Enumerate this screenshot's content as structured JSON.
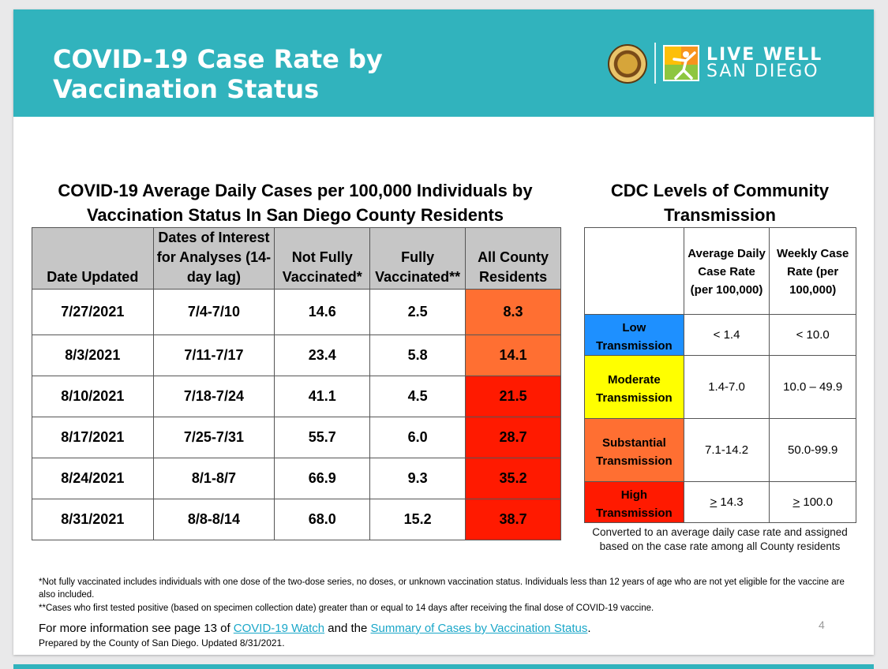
{
  "header": {
    "title": "COVID-19 Case Rate by\nVaccination Status",
    "logo_text_line1": "LIVE WELL",
    "logo_text_line2": "SAN DIEGO"
  },
  "main_table": {
    "heading": "COVID-19 Average Daily Cases per 100,000 Individuals by Vaccination Status In San Diego County Residents",
    "columns": [
      "Date Updated",
      "Dates of Interest for Analyses (14-day lag)",
      "Not Fully Vaccinated*",
      "Fully Vaccinated**",
      "All County Residents"
    ],
    "rows": [
      {
        "date": "7/27/2021",
        "interest": "7/4-7/10",
        "not_fully": "14.6",
        "fully": "2.5",
        "all": "8.3",
        "level_color": "#ff6f32"
      },
      {
        "date": "8/3/2021",
        "interest": "7/11-7/17",
        "not_fully": "23.4",
        "fully": "5.8",
        "all": "14.1",
        "level_color": "#ff6f32"
      },
      {
        "date": "8/10/2021",
        "interest": "7/18-7/24",
        "not_fully": "41.1",
        "fully": "4.5",
        "all": "21.5",
        "level_color": "#ff1a00"
      },
      {
        "date": "8/17/2021",
        "interest": "7/25-7/31",
        "not_fully": "55.7",
        "fully": "6.0",
        "all": "28.7",
        "level_color": "#ff1a00"
      },
      {
        "date": "8/24/2021",
        "interest": "8/1-8/7",
        "not_fully": "66.9",
        "fully": "9.3",
        "all": "35.2",
        "level_color": "#ff1a00"
      },
      {
        "date": "8/31/2021",
        "interest": "8/8-8/14",
        "not_fully": "68.0",
        "fully": "15.2",
        "all": "38.7",
        "level_color": "#ff1a00"
      }
    ]
  },
  "cdc_table": {
    "heading": "CDC Levels of Community Transmission",
    "col_daily": "Average Daily Case Rate (per 100,000)",
    "col_weekly": "Weekly Case Rate (per 100,000)",
    "levels": [
      {
        "word": "Low",
        "transmission": "Transmission",
        "daily": "< 1.4",
        "weekly": "< 10.0",
        "color": "#1e90ff"
      },
      {
        "word": "Moderate",
        "transmission": "Transmission",
        "daily": "1.4-7.0",
        "weekly": "10.0 – 49.9",
        "color": "#ffff00"
      },
      {
        "word": "Substantial",
        "transmission": "Transmission",
        "daily": "7.1-14.2",
        "weekly": "50.0-99.9",
        "color": "#ff6f32"
      },
      {
        "word": "High",
        "transmission": "Transmission",
        "daily_sym": ">",
        "daily_val": " 14.3",
        "weekly_sym": ">",
        "weekly_val": " 100.0",
        "color": "#ff1a00"
      }
    ],
    "note": "Converted to an average daily case rate and assigned based on the case rate among all County residents"
  },
  "footnotes": {
    "not_fully": "*Not fully vaccinated includes individuals with one dose of the two-dose series, no doses, or unknown vaccination status. Individuals less than 12 years of age who are not yet eligible for the vaccine are also included.",
    "fully": "**Cases who first tested positive (based on specimen collection date) greater than or equal to 14 days after receiving the final dose of COVID-19 vaccine."
  },
  "more_info": {
    "prefix": "For more information see page 13 of ",
    "link1": "COVID-19 Watch",
    "middle": " and the ",
    "link2": "Summary of Cases by Vaccination Status",
    "suffix": "."
  },
  "prepared": "Prepared by the County of San Diego. Updated 8/31/2021.",
  "page_number": "4"
}
